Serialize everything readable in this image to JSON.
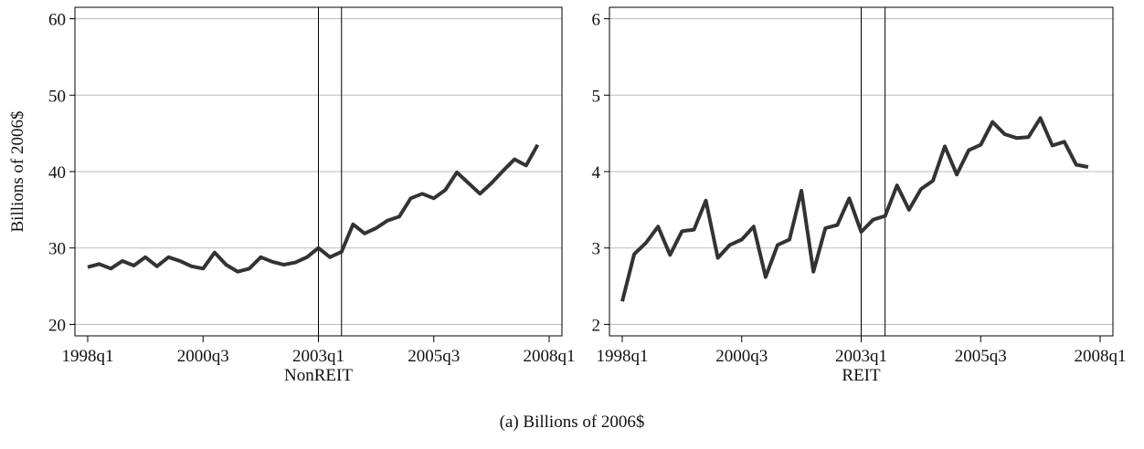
{
  "chart_data": [
    {
      "type": "line",
      "ylabel": "Billions of 2006$",
      "xlabel": "NonREIT",
      "color": "#333333",
      "x": [
        "1998q1",
        "1998q2",
        "1998q3",
        "1998q4",
        "1999q1",
        "1999q2",
        "1999q3",
        "1999q4",
        "2000q1",
        "2000q2",
        "2000q3",
        "2000q4",
        "2001q1",
        "2001q2",
        "2001q3",
        "2001q4",
        "2002q1",
        "2002q2",
        "2002q3",
        "2002q4",
        "2003q1",
        "2003q2",
        "2003q3",
        "2003q4",
        "2004q1",
        "2004q2",
        "2004q3",
        "2004q4",
        "2005q1",
        "2005q2",
        "2005q3",
        "2005q4",
        "2006q1",
        "2006q2",
        "2006q3",
        "2006q4",
        "2007q1",
        "2007q2",
        "2007q3",
        "2007q4"
      ],
      "values": [
        27.5,
        27.9,
        27.3,
        28.3,
        27.7,
        28.8,
        27.6,
        28.8,
        28.3,
        27.6,
        27.3,
        29.4,
        27.8,
        26.9,
        27.3,
        28.8,
        28.2,
        27.8,
        28.1,
        28.8,
        30.0,
        28.8,
        29.5,
        33.1,
        31.9,
        32.6,
        33.6,
        34.1,
        36.5,
        37.1,
        36.5,
        37.6,
        39.9,
        38.5,
        37.1,
        38.5,
        40.1,
        41.6,
        40.8,
        43.5
      ],
      "xlim": [
        "1998q1",
        "2008q1"
      ],
      "xticks": [
        "1998q1",
        "2000q3",
        "2003q1",
        "2005q3",
        "2008q1"
      ],
      "ylim": [
        18.5,
        61.5
      ],
      "yticks": [
        20,
        30,
        40,
        50,
        60
      ],
      "grid": true,
      "vlines": [
        "2003q1",
        "2003q3"
      ]
    },
    {
      "type": "line",
      "xlabel": "REIT",
      "color": "#333333",
      "x": [
        "1998q1",
        "1998q2",
        "1998q3",
        "1998q4",
        "1999q1",
        "1999q2",
        "1999q3",
        "1999q4",
        "2000q1",
        "2000q2",
        "2000q3",
        "2000q4",
        "2001q1",
        "2001q2",
        "2001q3",
        "2001q4",
        "2002q1",
        "2002q2",
        "2002q3",
        "2002q4",
        "2003q1",
        "2003q2",
        "2003q3",
        "2003q4",
        "2004q1",
        "2004q2",
        "2004q3",
        "2004q4",
        "2005q1",
        "2005q2",
        "2005q3",
        "2005q4",
        "2006q1",
        "2006q2",
        "2006q3",
        "2006q4",
        "2007q1",
        "2007q2",
        "2007q3",
        "2007q4"
      ],
      "values": [
        2.3,
        2.92,
        3.07,
        3.28,
        2.91,
        3.22,
        3.24,
        3.62,
        2.87,
        3.04,
        3.11,
        3.28,
        2.62,
        3.04,
        3.11,
        3.75,
        2.69,
        3.26,
        3.3,
        3.65,
        3.21,
        3.37,
        3.42,
        3.82,
        3.5,
        3.77,
        3.88,
        4.33,
        3.96,
        4.28,
        4.35,
        4.65,
        4.49,
        4.44,
        4.45,
        4.7,
        4.34,
        4.39,
        4.09,
        4.06
      ],
      "xlim": [
        "1998q1",
        "2008q1"
      ],
      "xticks": [
        "1998q1",
        "2000q3",
        "2003q1",
        "2005q3",
        "2008q1"
      ],
      "ylim": [
        1.85,
        6.15
      ],
      "yticks": [
        2,
        3,
        4,
        5,
        6
      ],
      "grid": true,
      "vlines": [
        "2003q1",
        "2003q3"
      ]
    }
  ],
  "caption": "(a) Billions of 2006$"
}
